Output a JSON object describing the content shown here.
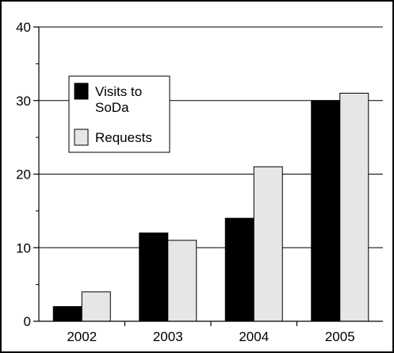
{
  "chart_data": {
    "type": "bar",
    "categories": [
      "2002",
      "2003",
      "2004",
      "2005"
    ],
    "series": [
      {
        "name": "Visits to SoDa",
        "values": [
          2,
          12,
          14,
          30
        ],
        "color": "#000000"
      },
      {
        "name": "Requests",
        "values": [
          4,
          11,
          21,
          31
        ],
        "color": "#e6e6e6"
      }
    ],
    "ylim": [
      0,
      40
    ],
    "yticks": [
      0,
      10,
      20,
      30,
      40
    ],
    "grid": true,
    "legend_position": "upper-left",
    "legend": {
      "visits_line1": "Visits to",
      "visits_line2": "SoDa",
      "requests": "Requests"
    },
    "title": "",
    "xlabel": "",
    "ylabel": ""
  }
}
